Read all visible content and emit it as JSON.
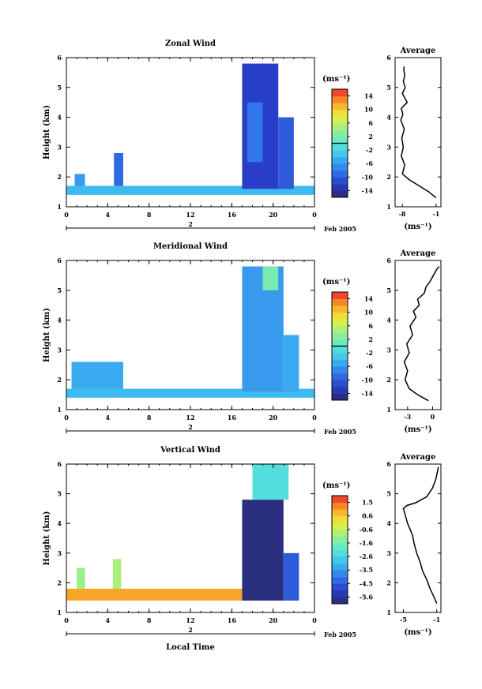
{
  "figure": {
    "xlabel": "Local Time",
    "date_label": "Feb 2005",
    "day_label": "2"
  },
  "chart_data": [
    {
      "type": "heatmap",
      "title": "Zonal Wind",
      "ylabel": "Height (km)",
      "unit_label": "(ms⁻¹)",
      "x_ticks": [
        "0",
        "4",
        "8",
        "12",
        "16",
        "20",
        "0"
      ],
      "y_ticks": [
        "1",
        "2",
        "3",
        "4",
        "5",
        "6"
      ],
      "xlim": [
        0,
        24
      ],
      "ylim": [
        1,
        6
      ],
      "colorbar": {
        "min": -16,
        "max": 16,
        "labels": [
          "14",
          "10",
          "6",
          "2",
          "-2",
          "-6",
          "-10",
          "-14"
        ],
        "zero_line": 0
      },
      "profile": {
        "title": "Average",
        "xlabel": "(ms⁻¹)",
        "x_ticks": [
          "-8",
          "-1"
        ],
        "xlim": [
          -9.5,
          0
        ],
        "y_ticks": [
          "1",
          "2",
          "3",
          "4",
          "5",
          "6"
        ],
        "ylim": [
          1,
          6
        ],
        "x_values": [
          -1.0,
          -2.5,
          -4.5,
          -6.5,
          -8.0,
          -7.5,
          -8.2,
          -7.8,
          -8.1,
          -7.6,
          -8.3,
          -7.9,
          -8.2,
          -7.0,
          -8.0,
          -7.4,
          -7.8,
          -7.5,
          -7.7,
          -7.6
        ],
        "y_values": [
          1.3,
          1.5,
          1.7,
          1.9,
          2.1,
          2.4,
          2.7,
          3.0,
          3.3,
          3.6,
          3.9,
          4.1,
          4.3,
          4.5,
          4.8,
          5.0,
          5.2,
          5.4,
          5.6,
          5.7
        ]
      },
      "data_regions": [
        {
          "x": [
            0.0,
            24.0
          ],
          "y": [
            1.4,
            1.7
          ],
          "value": -4
        },
        {
          "x": [
            0.8,
            1.8
          ],
          "y": [
            1.7,
            2.1
          ],
          "value": -6
        },
        {
          "x": [
            4.6,
            5.5
          ],
          "y": [
            1.7,
            2.8
          ],
          "value": -9
        },
        {
          "x": [
            17.0,
            20.5
          ],
          "y": [
            1.6,
            5.8
          ],
          "value": -12
        },
        {
          "x": [
            20.5,
            22.0
          ],
          "y": [
            1.6,
            4.0
          ],
          "value": -10
        },
        {
          "x": [
            17.5,
            19.0
          ],
          "y": [
            2.5,
            4.5
          ],
          "value": -8
        }
      ]
    },
    {
      "type": "heatmap",
      "title": "Meridional Wind",
      "ylabel": "Height (km)",
      "unit_label": "(ms⁻¹)",
      "x_ticks": [
        "0",
        "4",
        "8",
        "12",
        "16",
        "20",
        "0"
      ],
      "y_ticks": [
        "1",
        "2",
        "3",
        "4",
        "5",
        "6"
      ],
      "xlim": [
        0,
        24
      ],
      "ylim": [
        1,
        6
      ],
      "colorbar": {
        "min": -16,
        "max": 16,
        "labels": [
          "14",
          "10",
          "6",
          "2",
          "-2",
          "-6",
          "-10",
          "-14"
        ],
        "zero_line": 0
      },
      "profile": {
        "title": "Average",
        "xlabel": "(ms⁻¹)",
        "x_ticks": [
          "-3",
          "0"
        ],
        "xlim": [
          -4.5,
          1.0
        ],
        "y_ticks": [
          "1",
          "2",
          "3",
          "4",
          "5",
          "6"
        ],
        "ylim": [
          1,
          6
        ],
        "x_values": [
          -0.5,
          -1.8,
          -2.8,
          -3.3,
          -3.0,
          -3.4,
          -2.8,
          -3.1,
          -2.4,
          -2.7,
          -2.0,
          -2.3,
          -1.6,
          -1.8,
          -1.0,
          -0.8,
          -0.3,
          0.1,
          0.5,
          0.8
        ],
        "y_values": [
          1.3,
          1.5,
          1.7,
          2.0,
          2.3,
          2.6,
          2.9,
          3.2,
          3.5,
          3.8,
          4.1,
          4.3,
          4.5,
          4.7,
          4.9,
          5.1,
          5.3,
          5.5,
          5.7,
          5.8
        ]
      },
      "data_regions": [
        {
          "x": [
            0.0,
            24.0
          ],
          "y": [
            1.4,
            1.7
          ],
          "value": -4
        },
        {
          "x": [
            0.5,
            5.5
          ],
          "y": [
            1.7,
            2.6
          ],
          "value": -5
        },
        {
          "x": [
            17.0,
            21.0
          ],
          "y": [
            1.6,
            5.8
          ],
          "value": -6
        },
        {
          "x": [
            21.0,
            22.5
          ],
          "y": [
            1.6,
            3.5
          ],
          "value": -5
        },
        {
          "x": [
            19.0,
            20.5
          ],
          "y": [
            5.0,
            5.8
          ],
          "value": 2
        }
      ]
    },
    {
      "type": "heatmap",
      "title": "Vertical Wind",
      "ylabel": "Height (km)",
      "unit_label": "(ms⁻¹)",
      "x_ticks": [
        "0",
        "4",
        "8",
        "12",
        "16",
        "20",
        "0"
      ],
      "y_ticks": [
        "1",
        "2",
        "3",
        "4",
        "5",
        "6"
      ],
      "xlim": [
        0,
        24
      ],
      "ylim": [
        1,
        6
      ],
      "colorbar": {
        "min": -6,
        "max": 2,
        "labels": [
          "1.5",
          "0.6",
          "-0.6",
          "-1.6",
          "-2.6",
          "-3.5",
          "-4.5",
          "-5.6"
        ],
        "zero_line": null
      },
      "profile": {
        "title": "Average",
        "xlabel": "(ms⁻¹)",
        "x_ticks": [
          "-5",
          "-1"
        ],
        "xlim": [
          -6.0,
          -0.5
        ],
        "y_ticks": [
          "1",
          "2",
          "3",
          "4",
          "5",
          "6"
        ],
        "ylim": [
          1,
          6
        ],
        "x_values": [
          -1.0,
          -1.3,
          -1.8,
          -2.2,
          -2.7,
          -3.0,
          -3.4,
          -3.7,
          -3.9,
          -4.2,
          -4.5,
          -4.7,
          -4.9,
          -5.0,
          -4.6,
          -3.5,
          -2.2,
          -1.5,
          -1.1,
          -0.8
        ],
        "y_values": [
          1.3,
          1.5,
          1.8,
          2.1,
          2.4,
          2.7,
          3.0,
          3.3,
          3.6,
          3.8,
          4.0,
          4.2,
          4.4,
          4.5,
          4.6,
          4.7,
          4.9,
          5.2,
          5.5,
          5.9
        ]
      },
      "data_regions": [
        {
          "x": [
            0.0,
            17.0
          ],
          "y": [
            1.4,
            1.8
          ],
          "value": 1.0
        },
        {
          "x": [
            1.0,
            1.8
          ],
          "y": [
            1.8,
            2.5
          ],
          "value": -1.0
        },
        {
          "x": [
            4.5,
            5.3
          ],
          "y": [
            1.8,
            2.8
          ],
          "value": -0.8
        },
        {
          "x": [
            17.0,
            21.0
          ],
          "y": [
            1.4,
            4.8
          ],
          "value": -5.8
        },
        {
          "x": [
            21.0,
            22.5
          ],
          "y": [
            1.4,
            3.0
          ],
          "value": -4.5
        },
        {
          "x": [
            18.0,
            21.5
          ],
          "y": [
            4.8,
            6.0
          ],
          "value": -2.2
        }
      ]
    }
  ]
}
